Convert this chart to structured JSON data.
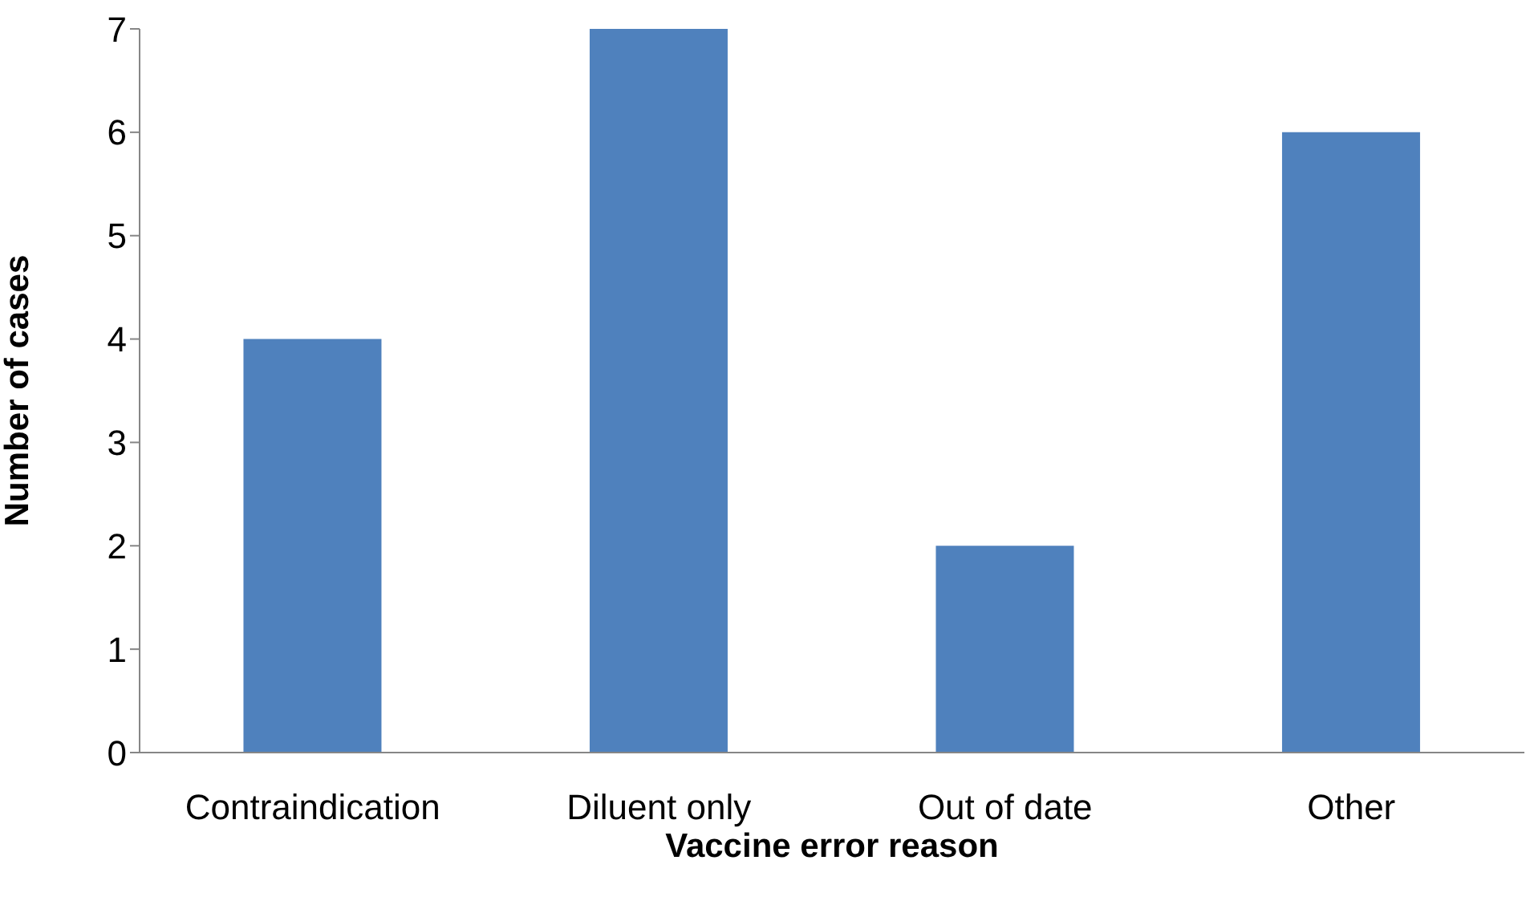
{
  "chart_data": {
    "type": "bar",
    "xlabel": "Vaccine error reason",
    "ylabel": "Number of cases",
    "categories": [
      "Contraindication",
      "Diluent only",
      "Out of date",
      "Other"
    ],
    "values": [
      4,
      7,
      2,
      6
    ],
    "color": "#4f81bd",
    "ylim": [
      0,
      7
    ],
    "yticks": [
      0,
      1,
      2,
      3,
      4,
      5,
      6,
      7
    ],
    "grid": false,
    "legend": false
  }
}
